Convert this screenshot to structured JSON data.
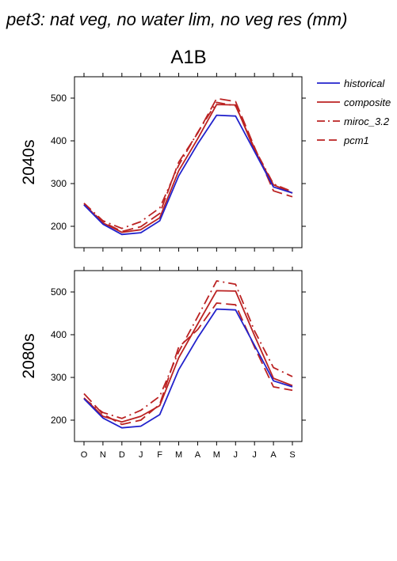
{
  "page_title": "pet3: nat veg, no water lim, no veg res (mm)",
  "chart_title": "A1B",
  "colors": {
    "historical": "#2222cc",
    "projection": "#bb2222",
    "axis": "#000000"
  },
  "legend": {
    "position": "right",
    "items": [
      {
        "label": "historical",
        "color": "#2222cc",
        "style": "solid-thin"
      },
      {
        "label": "composite",
        "color": "#bb2222",
        "style": "solid"
      },
      {
        "label": "miroc_3.2",
        "color": "#bb2222",
        "style": "dash-dot"
      },
      {
        "label": "pcm1",
        "color": "#bb2222",
        "style": "long-dash"
      }
    ]
  },
  "chart_data": [
    {
      "type": "line",
      "panel_label": "2040s",
      "categories": [
        "O",
        "N",
        "D",
        "J",
        "F",
        "M",
        "A",
        "M",
        "J",
        "J",
        "A",
        "S"
      ],
      "ylim": [
        150,
        550
      ],
      "yticks": [
        200,
        300,
        400,
        500
      ],
      "grid": false,
      "series": [
        {
          "name": "historical",
          "values": [
            250,
            205,
            181,
            185,
            213,
            318,
            393,
            460,
            458,
            375,
            292,
            278
          ]
        },
        {
          "name": "composite",
          "values": [
            251,
            208,
            186,
            192,
            220,
            330,
            405,
            485,
            484,
            378,
            297,
            278
          ]
        },
        {
          "name": "miroc_3.2",
          "values": [
            254,
            213,
            195,
            211,
            243,
            343,
            420,
            490,
            482,
            382,
            299,
            281
          ]
        },
        {
          "name": "pcm1",
          "values": [
            251,
            210,
            188,
            199,
            230,
            350,
            418,
            499,
            492,
            385,
            283,
            269
          ]
        }
      ]
    },
    {
      "type": "line",
      "panel_label": "2080s",
      "categories": [
        "O",
        "N",
        "D",
        "J",
        "F",
        "M",
        "A",
        "M",
        "J",
        "J",
        "A",
        "S"
      ],
      "ylim": [
        150,
        550
      ],
      "yticks": [
        200,
        300,
        400,
        500
      ],
      "grid": false,
      "series": [
        {
          "name": "historical",
          "values": [
            250,
            205,
            182,
            186,
            213,
            318,
            393,
            460,
            458,
            375,
            292,
            278
          ]
        },
        {
          "name": "composite",
          "values": [
            252,
            209,
            196,
            209,
            234,
            346,
            425,
            503,
            502,
            398,
            298,
            281
          ]
        },
        {
          "name": "miroc_3.2",
          "values": [
            250,
            218,
            204,
            223,
            256,
            360,
            442,
            526,
            518,
            409,
            323,
            302
          ]
        },
        {
          "name": "pcm1",
          "values": [
            262,
            214,
            190,
            200,
            237,
            371,
            412,
            474,
            470,
            371,
            278,
            270
          ]
        }
      ]
    }
  ]
}
